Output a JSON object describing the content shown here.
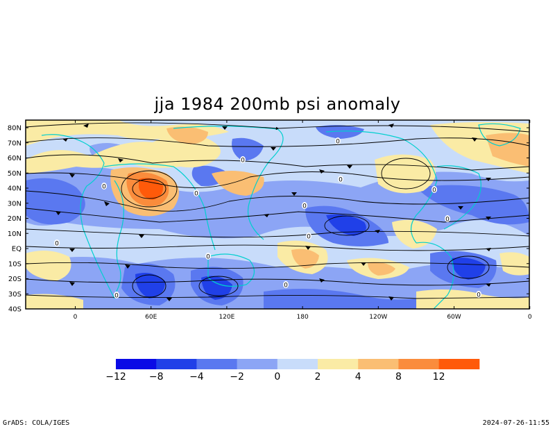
{
  "map": {
    "title": "jja 1984 200mb psi anomaly",
    "lat_labels": [
      "80N",
      "70N",
      "60N",
      "50N",
      "40N",
      "30N",
      "20N",
      "10N",
      "EQ",
      "10S",
      "20S",
      "30S",
      "40S"
    ],
    "lon_labels": [
      "0",
      "60E",
      "120E",
      "180",
      "120W",
      "60W",
      "0"
    ],
    "contour_labels": [
      "0",
      "0",
      "0",
      "0",
      "0",
      "0",
      "0",
      "0",
      "0",
      "0",
      "0",
      "0",
      "0",
      "0"
    ],
    "colorbar": {
      "colors": [
        "#0a0ae6",
        "#2040e8",
        "#5a78f0",
        "#8ca5f5",
        "#c8dcfa",
        "#faeba5",
        "#fabe73",
        "#fa8c3c",
        "#ff5a0a"
      ],
      "tick_labels": [
        "−12",
        "−8",
        "−4",
        "−2",
        "0",
        "2",
        "4",
        "8",
        "12"
      ]
    }
  },
  "footer": {
    "left": "GrADS: COLA/IGES",
    "right": "2024-07-26-11:55"
  }
}
